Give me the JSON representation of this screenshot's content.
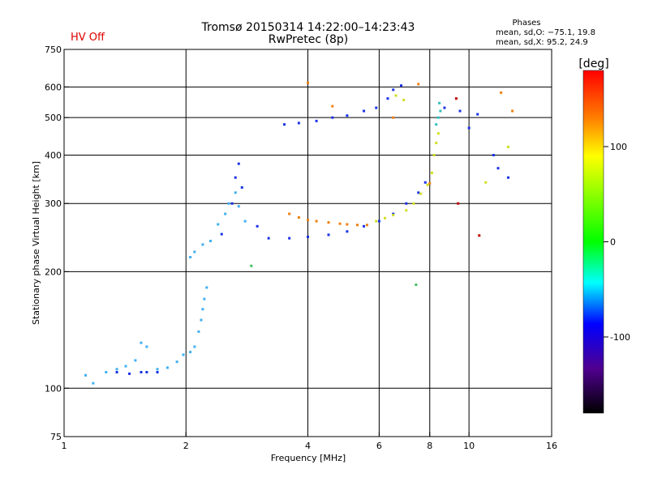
{
  "header": {
    "title": "Tromsø 20150314 14:22:00–14:23:43",
    "subtitle": "RwPretec (8p)",
    "status": "HV Off",
    "status_color": "#e00000",
    "stats_title": "Phases",
    "stats_o": "mean, sd,O: −75.1, 19.8",
    "stats_x": "mean, sd,X:  95.2, 24.9"
  },
  "chart_data": {
    "type": "scatter",
    "title": "Tromsø 20150314 14:22:00–14:23:43",
    "subtitle": "RwPretec (8p)",
    "xlabel": "Frequency [MHz]",
    "ylabel": "Stationary phase Virtual Height [km]",
    "xscale": "log",
    "yscale": "log",
    "xlim": [
      1,
      16
    ],
    "ylim": [
      75,
      750
    ],
    "xticks": [
      "1",
      "2",
      "4",
      "6",
      "8",
      "10",
      "16"
    ],
    "yticks": [
      "75",
      "100",
      "200",
      "300",
      "400",
      "500",
      "600",
      "750"
    ],
    "x_gridlines": [
      2,
      4,
      6,
      8,
      10
    ],
    "y_gridlines": [
      100,
      200,
      300,
      400,
      500,
      600
    ],
    "colorbar": {
      "label": "[deg]",
      "range": [
        -180,
        180
      ],
      "ticks": [
        "100",
        "0",
        "-100"
      ]
    },
    "series": [
      {
        "color": "#40b0f0",
        "points": [
          [
            1.13,
            108
          ],
          [
            1.18,
            103
          ],
          [
            1.27,
            110
          ],
          [
            1.35,
            112
          ],
          [
            1.42,
            114
          ],
          [
            1.5,
            118
          ],
          [
            1.55,
            131
          ],
          [
            1.6,
            128
          ],
          [
            1.7,
            112
          ],
          [
            1.8,
            113
          ],
          [
            1.9,
            117
          ],
          [
            1.97,
            122
          ],
          [
            2.05,
            124
          ],
          [
            2.1,
            128
          ],
          [
            2.15,
            140
          ],
          [
            2.18,
            150
          ],
          [
            2.2,
            160
          ],
          [
            2.22,
            170
          ],
          [
            2.25,
            182
          ],
          [
            2.05,
            218
          ],
          [
            2.1,
            225
          ],
          [
            2.2,
            235
          ],
          [
            2.3,
            240
          ],
          [
            2.4,
            265
          ],
          [
            2.5,
            282
          ],
          [
            2.55,
            300
          ],
          [
            2.65,
            320
          ],
          [
            2.7,
            295
          ],
          [
            2.8,
            270
          ]
        ]
      },
      {
        "color": "#1a33e6",
        "points": [
          [
            1.35,
            110
          ],
          [
            1.45,
            109
          ],
          [
            1.55,
            110
          ],
          [
            1.6,
            110
          ],
          [
            1.7,
            110
          ],
          [
            2.45,
            250
          ],
          [
            2.6,
            300
          ],
          [
            2.65,
            350
          ],
          [
            2.7,
            380
          ],
          [
            2.75,
            330
          ],
          [
            3.0,
            262
          ],
          [
            3.2,
            244
          ],
          [
            3.6,
            244
          ],
          [
            4.0,
            246
          ],
          [
            4.5,
            249
          ],
          [
            5.0,
            254
          ],
          [
            5.5,
            262
          ],
          [
            6.0,
            270
          ],
          [
            6.5,
            282
          ],
          [
            7.0,
            300
          ],
          [
            7.5,
            320
          ],
          [
            7.8,
            340
          ],
          [
            3.5,
            480
          ],
          [
            3.8,
            484
          ],
          [
            4.2,
            490
          ],
          [
            4.6,
            500
          ],
          [
            5.0,
            506
          ],
          [
            5.5,
            520
          ],
          [
            5.9,
            530
          ],
          [
            6.3,
            560
          ],
          [
            6.5,
            590
          ],
          [
            6.8,
            605
          ],
          [
            8.7,
            530
          ],
          [
            9.5,
            520
          ],
          [
            10.0,
            470
          ],
          [
            10.5,
            510
          ],
          [
            11.5,
            400
          ],
          [
            11.8,
            370
          ],
          [
            12.5,
            350
          ]
        ]
      },
      {
        "color": "#f08010",
        "points": [
          [
            3.6,
            282
          ],
          [
            3.8,
            276
          ],
          [
            4.0,
            272
          ],
          [
            4.2,
            270
          ],
          [
            4.5,
            268
          ],
          [
            4.8,
            266
          ],
          [
            5.0,
            265
          ],
          [
            5.3,
            264
          ],
          [
            5.6,
            264
          ],
          [
            8.0,
            338
          ],
          [
            4.0,
            615
          ],
          [
            4.6,
            535
          ],
          [
            6.5,
            500
          ],
          [
            7.5,
            610
          ],
          [
            12.0,
            580
          ],
          [
            12.8,
            520
          ]
        ]
      },
      {
        "color": "#d0e020",
        "points": [
          [
            5.9,
            270
          ],
          [
            6.2,
            275
          ],
          [
            6.5,
            280
          ],
          [
            7.0,
            288
          ],
          [
            7.3,
            300
          ],
          [
            7.6,
            318
          ],
          [
            7.9,
            335
          ],
          [
            8.1,
            360
          ],
          [
            8.2,
            400
          ],
          [
            8.3,
            430
          ],
          [
            8.4,
            455
          ],
          [
            6.6,
            570
          ],
          [
            6.9,
            555
          ],
          [
            11.0,
            340
          ],
          [
            12.5,
            420
          ]
        ]
      },
      {
        "color": "#30c0c0",
        "points": [
          [
            8.3,
            480
          ],
          [
            8.4,
            500
          ],
          [
            8.5,
            520
          ],
          [
            8.45,
            545
          ]
        ]
      },
      {
        "color": "#40c060",
        "points": [
          [
            2.9,
            207
          ],
          [
            7.4,
            185
          ]
        ]
      },
      {
        "color": "#c00000",
        "points": [
          [
            9.3,
            560
          ],
          [
            9.4,
            300
          ],
          [
            10.6,
            248
          ]
        ]
      }
    ]
  }
}
